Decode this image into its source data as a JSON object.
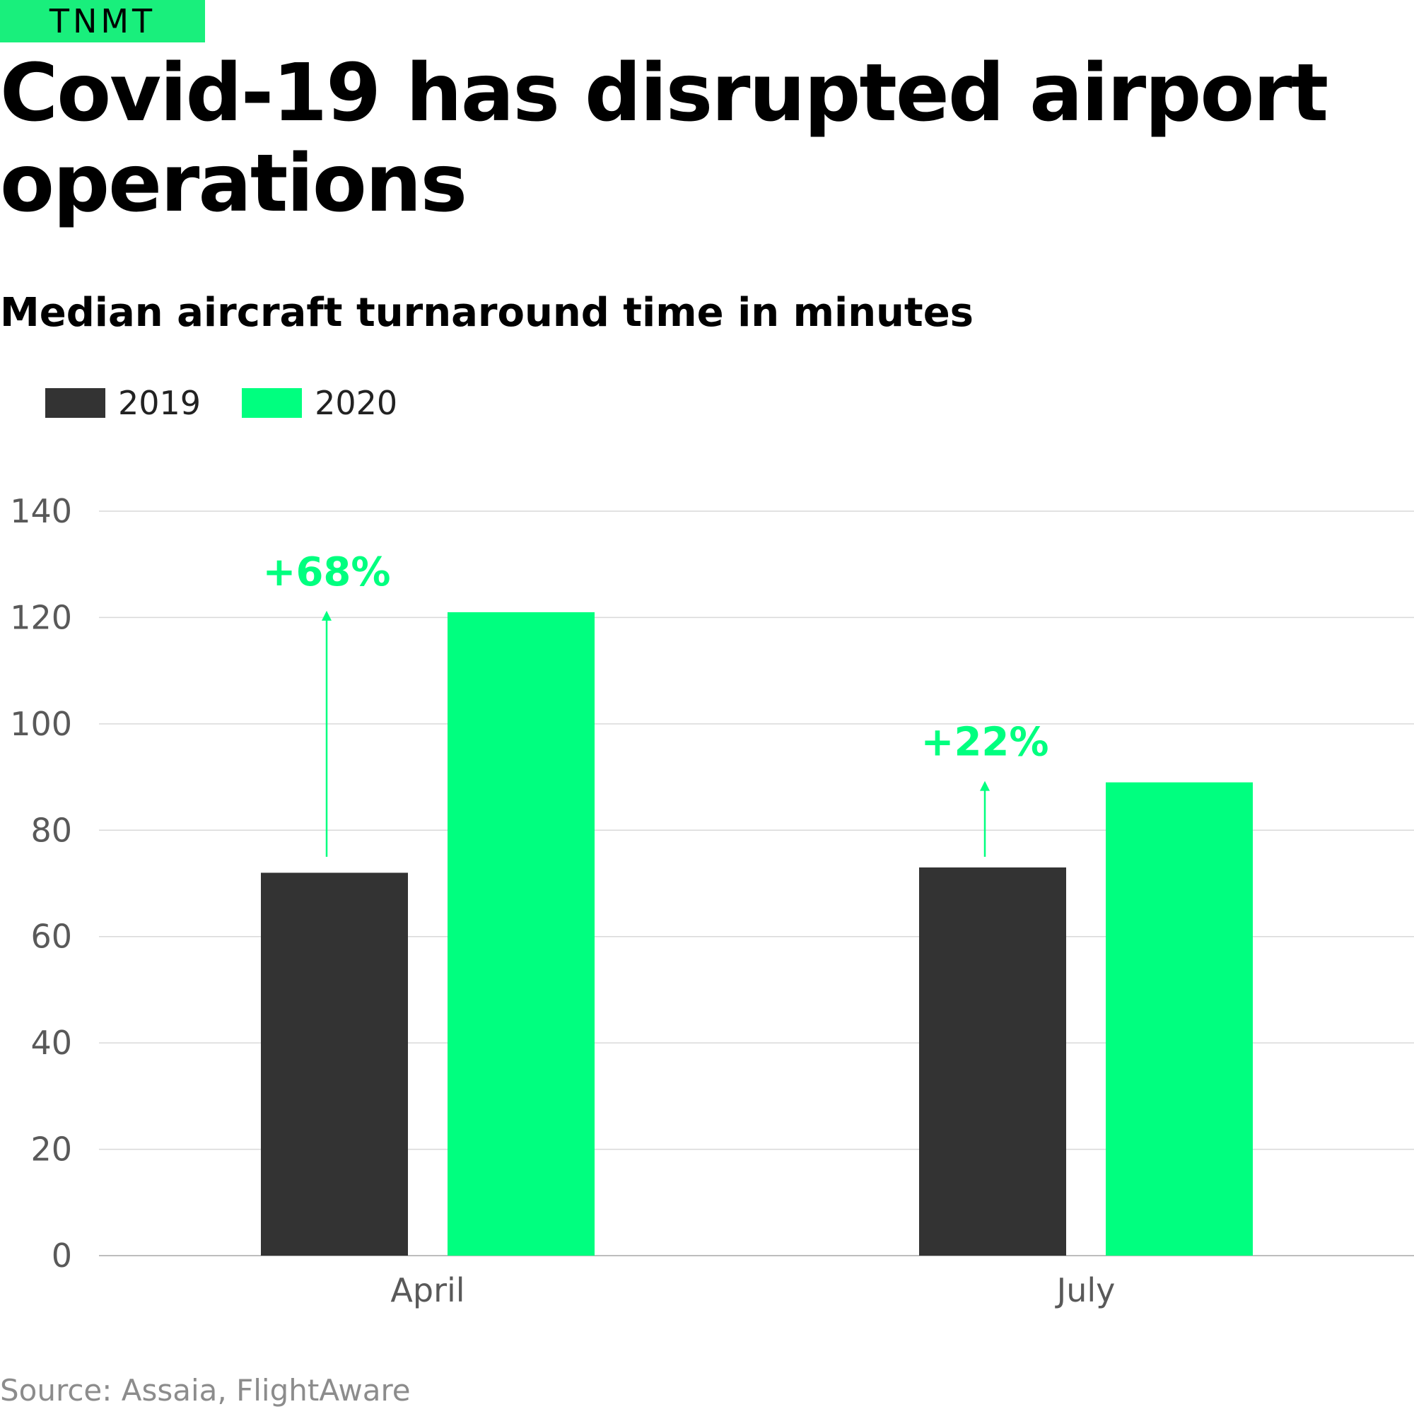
{
  "brand": {
    "logo_text": "TNMT"
  },
  "title": "Covid-19 has disrupted airport operations",
  "subtitle": "Median aircraft turnaround time in minutes",
  "source": "Source: Assaia, FlightAware",
  "colors": {
    "accent": "#00ff7f",
    "dark": "#333333",
    "grid": "#d9d9d9",
    "axis_text": "#595959"
  },
  "chart_data": {
    "type": "bar",
    "title": "Median aircraft turnaround time in minutes",
    "categories": [
      "April",
      "July"
    ],
    "series": [
      {
        "name": "2019",
        "color": "#333333",
        "values": [
          72,
          73
        ]
      },
      {
        "name": "2020",
        "color": "#00ff7f",
        "values": [
          121,
          89
        ]
      }
    ],
    "annotations": [
      {
        "category": "April",
        "text": "+68%",
        "from": 75,
        "to": 121
      },
      {
        "category": "July",
        "text": "+22%",
        "from": 75,
        "to": 89
      }
    ],
    "ylim": [
      0,
      140
    ],
    "yticks": [
      0,
      20,
      40,
      60,
      80,
      100,
      120,
      140
    ],
    "xlabel": "",
    "ylabel": "",
    "grid": true,
    "legend": "top-left"
  }
}
